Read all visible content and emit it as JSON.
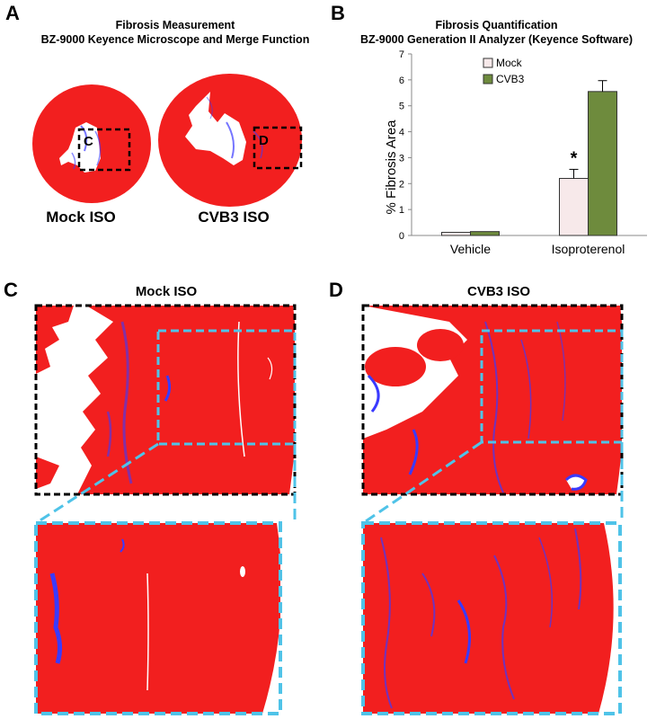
{
  "panel_a": {
    "letter": "A",
    "title_line1": "Fibrosis Measurement",
    "title_line2": "BZ-9000 Keyence Microscope and Merge Function",
    "left_label": "Mock ISO",
    "right_label": "CVB3 ISO",
    "box_left_letter": "C",
    "box_right_letter": "D"
  },
  "panel_b": {
    "letter": "B",
    "title_line1": "Fibrosis Quantification",
    "title_line2": "BZ-9000 Generation II Analyzer (Keyence Software)",
    "significance_marker": "*"
  },
  "panel_c": {
    "letter": "C",
    "title": "Mock ISO"
  },
  "panel_d": {
    "letter": "D",
    "title": "CVB3 ISO"
  },
  "colors": {
    "tissue_red": "#f21f1f",
    "fibrosis_blue": "#3a3aff",
    "zoom_box_cyan": "#4fc3e8",
    "mock_bar": "#f7e9ea",
    "cvb3_bar": "#6e8b3d"
  },
  "chart_data": {
    "type": "bar",
    "categories": [
      "Vehicle",
      "Isoproterenol"
    ],
    "series": [
      {
        "name": "Mock",
        "values": [
          0.12,
          2.2
        ],
        "errors": [
          0.0,
          0.35
        ],
        "color": "#f7e9ea"
      },
      {
        "name": "CVB3",
        "values": [
          0.15,
          5.55
        ],
        "errors": [
          0.0,
          0.42
        ],
        "color": "#6e8b3d"
      }
    ],
    "xlabel": "",
    "ylabel": "% Fibrosis Area",
    "ylim": [
      0,
      7
    ],
    "yticks": [
      "0",
      "1",
      "2",
      "3",
      "4",
      "5",
      "6",
      "7"
    ],
    "legend_position": "top-left",
    "grid": false
  }
}
